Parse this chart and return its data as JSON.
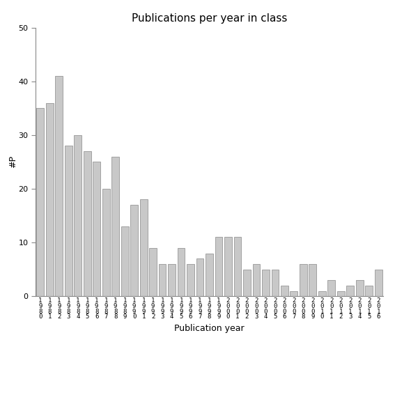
{
  "title": "Publications per year in class",
  "xlabel": "Publication year",
  "ylabel": "#P",
  "ylim": [
    0,
    50
  ],
  "yticks": [
    0,
    10,
    20,
    30,
    40,
    50
  ],
  "bar_color": "#c8c8c8",
  "bar_edgecolor": "#888888",
  "categories": [
    [
      "1",
      "9",
      "8",
      "0"
    ],
    [
      "1",
      "9",
      "8",
      "1"
    ],
    [
      "1",
      "9",
      "8",
      "2"
    ],
    [
      "1",
      "9",
      "8",
      "3"
    ],
    [
      "1",
      "9",
      "8",
      "4"
    ],
    [
      "1",
      "9",
      "8",
      "5"
    ],
    [
      "1",
      "9",
      "8",
      "6"
    ],
    [
      "1",
      "9",
      "8",
      "7"
    ],
    [
      "1",
      "9",
      "8",
      "8"
    ],
    [
      "1",
      "9",
      "8",
      "9"
    ],
    [
      "1",
      "9",
      "9",
      "0"
    ],
    [
      "1",
      "9",
      "9",
      "1"
    ],
    [
      "1",
      "9",
      "9",
      "2"
    ],
    [
      "1",
      "9",
      "9",
      "3"
    ],
    [
      "1",
      "9",
      "9",
      "4"
    ],
    [
      "1",
      "9",
      "9",
      "5"
    ],
    [
      "1",
      "9",
      "9",
      "6"
    ],
    [
      "1",
      "9",
      "9",
      "7"
    ],
    [
      "1",
      "9",
      "9",
      "8"
    ],
    [
      "1",
      "9",
      "9",
      "9"
    ],
    [
      "2",
      "0",
      "0",
      "0"
    ],
    [
      "2",
      "0",
      "0",
      "1"
    ],
    [
      "2",
      "0",
      "0",
      "2"
    ],
    [
      "2",
      "0",
      "0",
      "3"
    ],
    [
      "2",
      "0",
      "0",
      "4"
    ],
    [
      "2",
      "0",
      "0",
      "5"
    ],
    [
      "2",
      "0",
      "0",
      "6"
    ],
    [
      "2",
      "0",
      "0",
      "7"
    ],
    [
      "2",
      "0",
      "0",
      "8"
    ],
    [
      "2",
      "0",
      "0",
      "9"
    ],
    [
      "2",
      "0",
      "1",
      "0"
    ],
    [
      "2",
      "0",
      "1",
      "1"
    ],
    [
      "2",
      "0",
      "1",
      "2"
    ],
    [
      "2",
      "0",
      "1",
      "3"
    ],
    [
      "2",
      "0",
      "1",
      "4"
    ],
    [
      "2",
      "0",
      "1",
      "5"
    ],
    [
      "2",
      "0",
      "1",
      "6"
    ]
  ],
  "values": [
    35,
    36,
    41,
    28,
    30,
    27,
    25,
    20,
    26,
    13,
    17,
    18,
    9,
    6,
    6,
    9,
    6,
    7,
    8,
    11,
    11,
    11,
    5,
    6,
    5,
    5,
    2,
    1,
    6,
    6,
    1,
    3,
    1,
    2,
    3,
    2,
    5
  ],
  "background_color": "#ffffff",
  "title_fontsize": 11,
  "label_fontsize": 9,
  "tick_fontsize": 6.5,
  "ytick_fontsize": 8
}
